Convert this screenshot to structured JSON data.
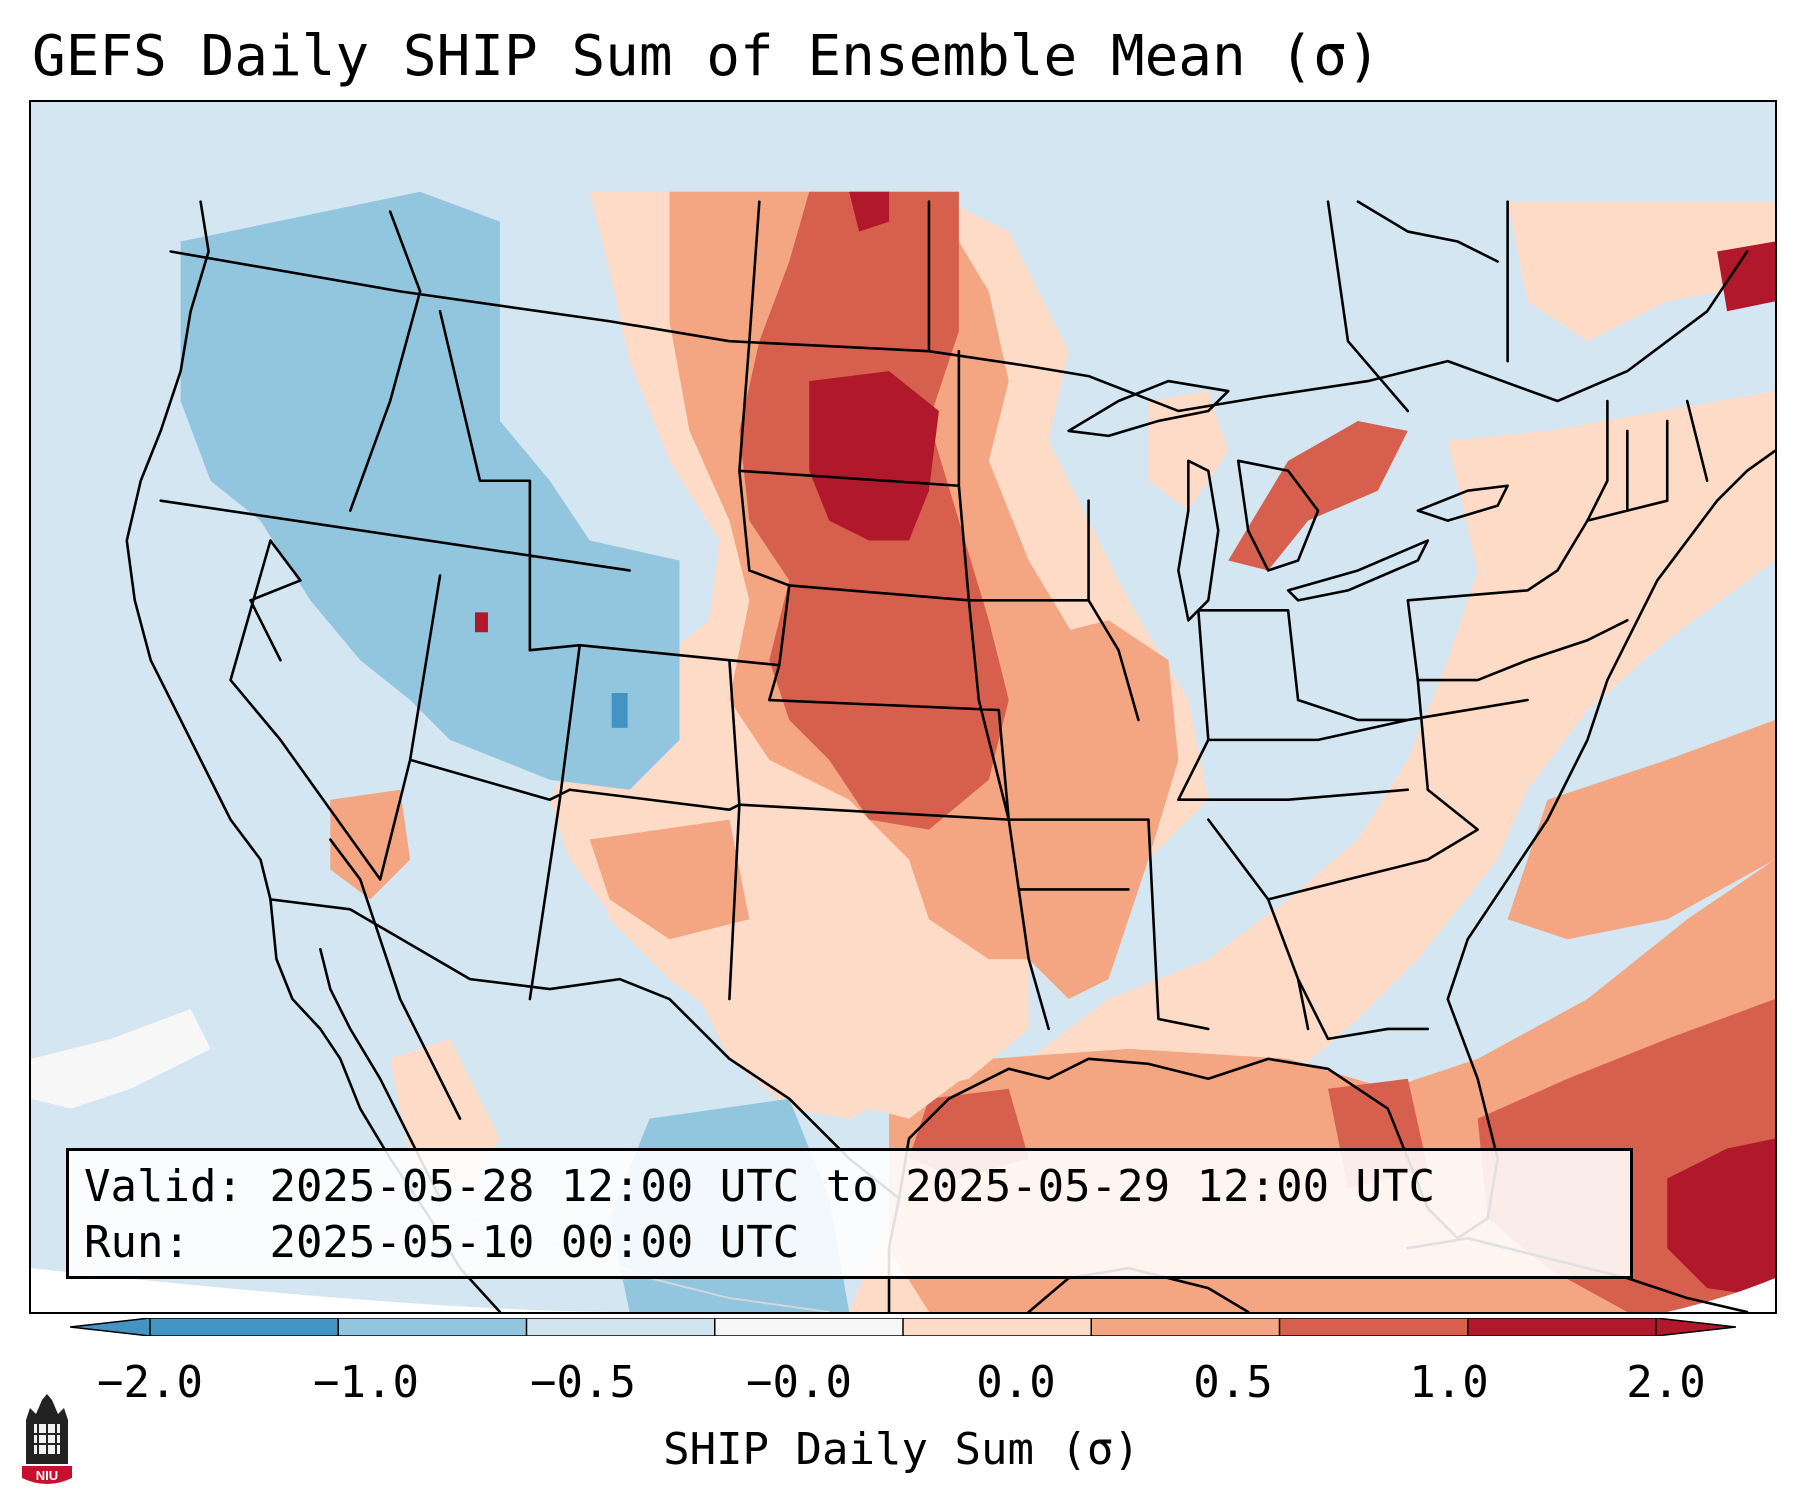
{
  "title": "GEFS Daily SHIP Sum of Ensemble Mean (σ)",
  "info": {
    "valid_label": "Valid:",
    "valid_value": "2025-05-28 12:00 UTC to 2025-05-29 12:00 UTC",
    "run_label": "Run:",
    "run_value": "2025-05-10 00:00 UTC"
  },
  "colorbar": {
    "label": "SHIP Daily Sum (σ)",
    "ticks": [
      "−2.0",
      "−1.0",
      "−0.5",
      "−0.0",
      "0.0",
      "0.5",
      "1.0",
      "2.0"
    ],
    "colors": [
      "#4393c3",
      "#92c5de",
      "#d1e5f0",
      "#f7f7f7",
      "#fddbc7",
      "#f4a582",
      "#d6604d",
      "#b2182b"
    ],
    "extend": "both"
  },
  "logo_text": "NIU",
  "map": {
    "projection": "Lambert conformal, CONUS",
    "background_color": "#d4e6f1",
    "features": [
      "coastlines",
      "state borders",
      "country borders",
      "Great Lakes"
    ],
    "anomaly_patches": [
      {
        "region": "Northern/Central Plains",
        "level": "1.0 to 2.0"
      },
      {
        "region": "Nebraska / South Dakota core",
        "level": "> 2.0"
      },
      {
        "region": "Kansas / Oklahoma",
        "level": "1.0 to 2.0"
      },
      {
        "region": "Missouri / Arkansas / Iowa",
        "level": "0.5 to 1.0"
      },
      {
        "region": "Texas / New Mexico",
        "level": "0.0 to 0.5"
      },
      {
        "region": "Gulf of Mexico / Caribbean",
        "level": "0.5 to 2.0"
      },
      {
        "region": "Western U.S. (Great Basin, Rockies)",
        "level": "−1.0 to −0.5"
      },
      {
        "region": "Colorado pocket",
        "level": "< −1.0"
      },
      {
        "region": "Northeast / Ohio Valley",
        "level": "−0.5 to −0.0"
      },
      {
        "region": "Western Atlantic",
        "level": "0.0 to 1.0"
      }
    ]
  }
}
